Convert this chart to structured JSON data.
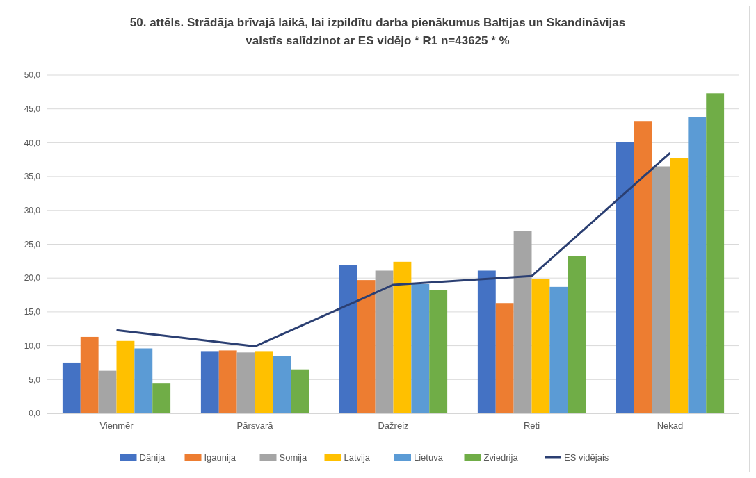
{
  "chart_data": {
    "type": "bar",
    "title": "50. attēls. Strādāja brīvajā laikā, lai izpildītu darba pienākumus Baltijas un Skandināvijas valstīs salīdzinot ar ES vidējo * R1 n=43625 * %",
    "categories": [
      "Vienmēr",
      "Pārsvarā",
      "Dažreiz",
      "Reti",
      "Nekad"
    ],
    "series": [
      {
        "name": "Dānija",
        "color": "#4472c4",
        "values": [
          7.5,
          9.2,
          21.9,
          21.1,
          40.1
        ]
      },
      {
        "name": "Igaunija",
        "color": "#ed7d31",
        "values": [
          11.3,
          9.3,
          19.7,
          16.3,
          43.2
        ]
      },
      {
        "name": "Somija",
        "color": "#a5a5a5",
        "values": [
          6.3,
          9.0,
          21.1,
          26.9,
          36.5
        ]
      },
      {
        "name": "Latvija",
        "color": "#ffc000",
        "values": [
          10.7,
          9.2,
          22.4,
          19.9,
          37.7
        ]
      },
      {
        "name": "Lietuva",
        "color": "#5b9bd5",
        "values": [
          9.6,
          8.5,
          19.1,
          18.7,
          43.8
        ]
      },
      {
        "name": "Zviedrija",
        "color": "#70ad47",
        "values": [
          4.5,
          6.5,
          18.2,
          23.3,
          47.3
        ]
      },
      {
        "name": "ES vidējais",
        "color": "#2b3f72",
        "type": "line",
        "values": [
          12.3,
          9.9,
          19.0,
          20.3,
          38.5
        ]
      }
    ],
    "ylim": [
      0,
      50
    ],
    "yticks": [
      {
        "value": 0,
        "label": "0,0"
      },
      {
        "value": 5,
        "label": "5,0"
      },
      {
        "value": 10,
        "label": "10,0"
      },
      {
        "value": 15,
        "label": "15,0"
      },
      {
        "value": 20,
        "label": "20,0"
      },
      {
        "value": 25,
        "label": "25,0"
      },
      {
        "value": 30,
        "label": "30,0"
      },
      {
        "value": 35,
        "label": "35,0"
      },
      {
        "value": 40,
        "label": "40,0"
      },
      {
        "value": 45,
        "label": "45,0"
      },
      {
        "value": 50,
        "label": "50,0"
      }
    ],
    "grid": "y",
    "legend": "bottom",
    "marker": "none",
    "line_style": "solid"
  }
}
